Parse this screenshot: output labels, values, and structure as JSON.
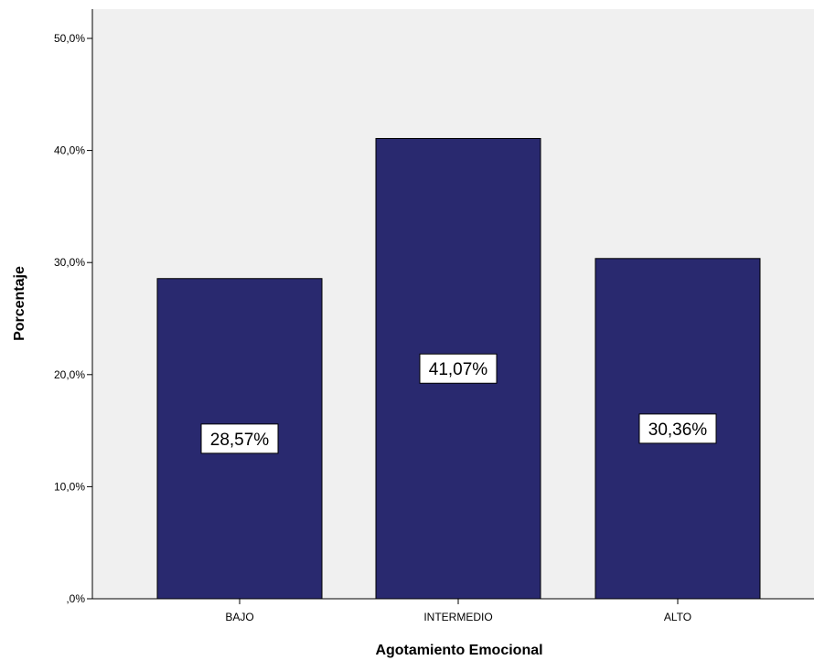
{
  "chart_data": {
    "type": "bar",
    "title": "",
    "xlabel": "Agotamiento Emocional",
    "ylabel": "Porcentaje",
    "categories": [
      "BAJO",
      "INTERMEDIO",
      "ALTO"
    ],
    "values": [
      28.57,
      41.07,
      30.36
    ],
    "data_labels": [
      "28,57%",
      "41,07%",
      "30,36%"
    ],
    "ylim": [
      0,
      50
    ],
    "yticks": [
      0,
      10,
      20,
      30,
      40,
      50
    ],
    "ytick_labels": [
      ",0%",
      "10,0%",
      "20,0%",
      "30,0%",
      "40,0%",
      "50,0%"
    ],
    "grid": false,
    "legend": "none",
    "colors": {
      "bar": "#29296f",
      "plot_background": "#f0f0f0",
      "label_box": "#ffffff"
    }
  }
}
